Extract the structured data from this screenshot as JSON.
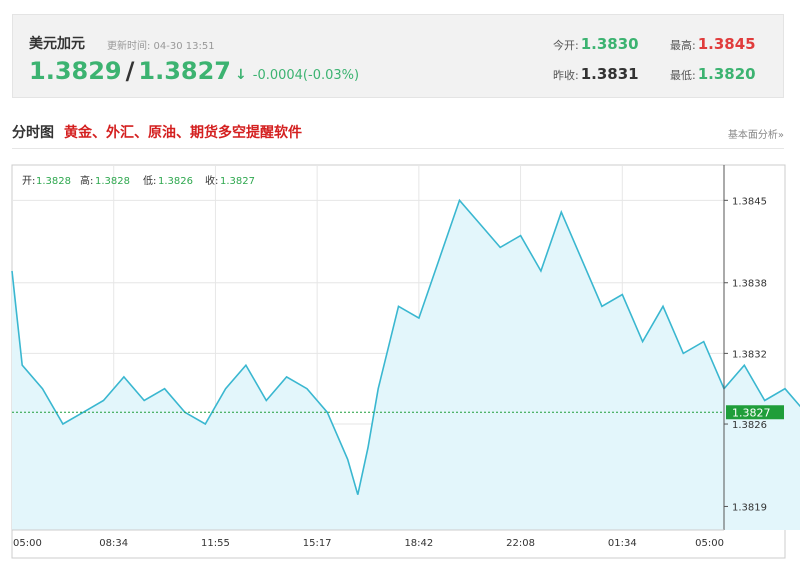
{
  "header": {
    "name": "美元加元",
    "update_label": "更新时间: 04-30 13:51",
    "price_bid": "1.3829",
    "price_sep": "/",
    "price_ask": "1.3827",
    "arrow": "↓",
    "change": "-0.0004(-0.03%)",
    "open_label": "今开:",
    "open_value": "1.3830",
    "high_label": "最高:",
    "high_value": "1.3845",
    "prev_close_label": "昨收:",
    "prev_close_value": "1.3831",
    "low_label": "最低:",
    "low_value": "1.3820"
  },
  "section": {
    "title": "分时图",
    "promo_link": "黄金、外汇、原油、期货多空提醒软件",
    "right_link": "基本面分析»"
  },
  "ohlc": {
    "open_label": "开:",
    "open_value": "1.3828",
    "high_label": "高:",
    "high_value": "1.3828",
    "low_label": "低:",
    "low_value": "1.3826",
    "close_label": "收:",
    "close_value": "1.3827"
  },
  "colors": {
    "line": "#3ab7d0",
    "fill": "#e3f6fb",
    "green": "#3cb371",
    "red": "#e03c3c",
    "current_tag": "#1f9e3a"
  },
  "chart_data": {
    "type": "area",
    "x_tick_labels": [
      "05:00",
      "08:34",
      "11:55",
      "15:17",
      "18:42",
      "22:08",
      "01:34",
      "05:00"
    ],
    "y_tick_labels": [
      "1.3845",
      "1.3838",
      "1.3832",
      "1.3826",
      "1.3819"
    ],
    "y_ticks": [
      1.3845,
      1.3838,
      1.3832,
      1.3826,
      1.3819
    ],
    "ylim": [
      1.3817,
      1.3848
    ],
    "current_value": 1.3827,
    "current_label": "1.3827",
    "grid": true,
    "x": [
      0.0,
      0.1,
      0.3,
      0.5,
      0.7,
      0.9,
      1.1,
      1.3,
      1.5,
      1.7,
      1.9,
      2.1,
      2.3,
      2.5,
      2.7,
      2.9,
      3.1,
      3.3,
      3.4,
      3.5,
      3.6,
      3.8,
      4.0,
      4.2,
      4.4,
      4.6,
      4.8,
      5.0,
      5.2,
      5.4,
      5.6,
      5.8,
      6.0,
      6.2,
      6.4,
      6.6,
      6.8,
      7.0,
      7.2,
      7.4,
      7.6,
      7.8,
      7.99
    ],
    "values": [
      1.3839,
      1.3831,
      1.3829,
      1.3826,
      1.3827,
      1.3828,
      1.383,
      1.3828,
      1.3829,
      1.3827,
      1.3826,
      1.3829,
      1.3831,
      1.3828,
      1.383,
      1.3829,
      1.3827,
      1.3823,
      1.382,
      1.3824,
      1.3829,
      1.3836,
      1.3835,
      1.384,
      1.3845,
      1.3843,
      1.3841,
      1.3842,
      1.3839,
      1.3844,
      1.384,
      1.3836,
      1.3837,
      1.3833,
      1.3836,
      1.3832,
      1.3833,
      1.3829,
      1.3831,
      1.3828,
      1.3829,
      1.3827,
      1.3827
    ]
  }
}
